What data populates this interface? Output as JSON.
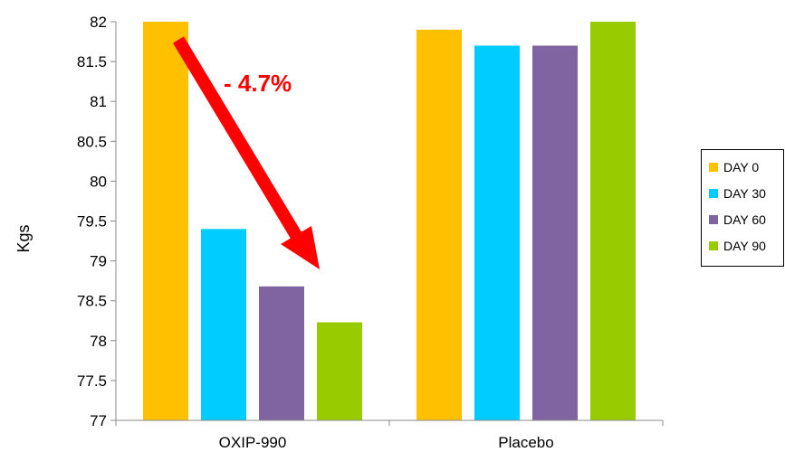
{
  "chart_data": {
    "type": "bar",
    "categories": [
      "OXIP-990",
      "Placebo"
    ],
    "series": [
      {
        "name": "DAY 0",
        "color": "#ffc000",
        "values": [
          82.0,
          81.9
        ]
      },
      {
        "name": "DAY 30",
        "color": "#00ccff",
        "values": [
          79.4,
          81.7
        ]
      },
      {
        "name": "DAY 60",
        "color": "#8064a2",
        "values": [
          78.68,
          81.7
        ]
      },
      {
        "name": "DAY 90",
        "color": "#99cc00",
        "values": [
          78.23,
          82.0
        ]
      }
    ],
    "ylabel": "Kgs",
    "ylim": [
      77,
      82
    ],
    "yticks": [
      "77",
      "77.5",
      "78",
      "78.5",
      "79",
      "79.5",
      "80",
      "80.5",
      "81",
      "81.5",
      "82"
    ],
    "grid": false,
    "legend": "right",
    "annotation": {
      "text": "- 4.7%",
      "color": "#ff0000"
    }
  }
}
